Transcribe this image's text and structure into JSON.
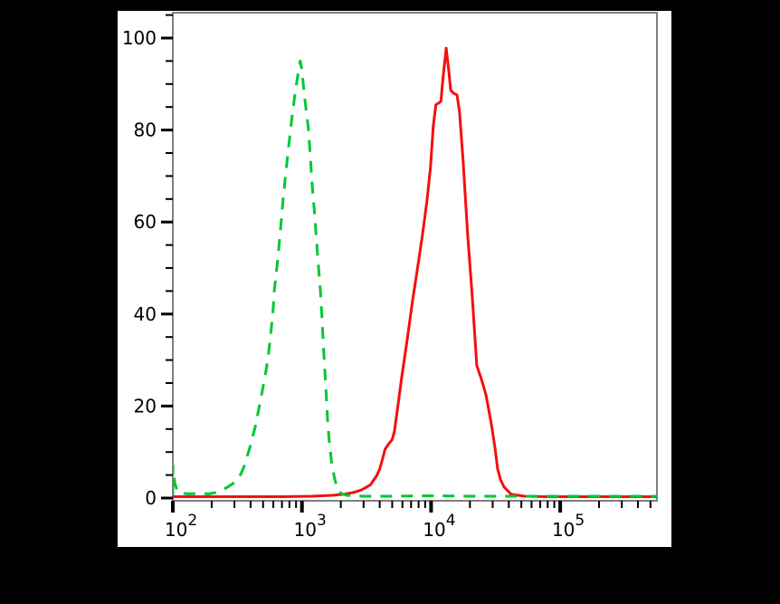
{
  "page": {
    "background_color": "#000000"
  },
  "panel": {
    "background_color": "#ffffff"
  },
  "chart_data": {
    "type": "line",
    "subtype": "flow-cytometry-overlay-histogram",
    "title": "",
    "xlabel": "",
    "ylabel": "",
    "x_scale": "log",
    "x_range": [
      100,
      561000
    ],
    "y_range": [
      0,
      100
    ],
    "grid": false,
    "legend": null,
    "frame_color": "#7f7f7f",
    "tick_color": "#000000",
    "label_color": "#000000",
    "y_major_ticks": [
      {
        "label": "0",
        "value": 0
      },
      {
        "label": "20",
        "value": 20
      },
      {
        "label": "40",
        "value": 40
      },
      {
        "label": "60",
        "value": 60
      },
      {
        "label": "80",
        "value": 80
      },
      {
        "label": "100",
        "value": 100
      }
    ],
    "y_minor_step": 5,
    "y_minor_max": 105,
    "x_major_ticks": [
      {
        "base": "10",
        "exp": "2",
        "value": 100
      },
      {
        "base": "10",
        "exp": "3",
        "value": 1000
      },
      {
        "base": "10",
        "exp": "4",
        "value": 10000
      },
      {
        "base": "10",
        "exp": "5",
        "value": 100000
      }
    ],
    "x_minor_multiples": [
      2,
      3,
      4,
      5,
      6,
      7,
      8,
      9
    ],
    "series": [
      {
        "name": "red-solid-sample",
        "color": "#f50f0f",
        "line_style": "solid",
        "peak": {
          "x": 13100,
          "y": 97.8
        },
        "points": [
          [
            100,
            0.3
          ],
          [
            300,
            0.3
          ],
          [
            700,
            0.3
          ],
          [
            1200,
            0.4
          ],
          [
            1700,
            0.6
          ],
          [
            2100,
            0.8
          ],
          [
            2500,
            1.2
          ],
          [
            2900,
            1.8
          ],
          [
            3400,
            2.9
          ],
          [
            3800,
            4.9
          ],
          [
            4000,
            6.3
          ],
          [
            4200,
            8.4
          ],
          [
            4400,
            10.6
          ],
          [
            4700,
            11.8
          ],
          [
            5000,
            12.7
          ],
          [
            5200,
            14.5
          ],
          [
            5500,
            19.4
          ],
          [
            5900,
            25.9
          ],
          [
            6500,
            34.0
          ],
          [
            7200,
            43.0
          ],
          [
            7800,
            49.4
          ],
          [
            8600,
            57.5
          ],
          [
            9300,
            64.7
          ],
          [
            9900,
            72.0
          ],
          [
            10400,
            80.8
          ],
          [
            10900,
            85.5
          ],
          [
            11900,
            86.2
          ],
          [
            12400,
            91.5
          ],
          [
            13100,
            97.8
          ],
          [
            13700,
            93.0
          ],
          [
            14200,
            88.6
          ],
          [
            15000,
            88.0
          ],
          [
            15900,
            87.6
          ],
          [
            16600,
            84.0
          ],
          [
            17700,
            73.3
          ],
          [
            19200,
            57.3
          ],
          [
            20800,
            44.1
          ],
          [
            22600,
            28.8
          ],
          [
            24500,
            25.9
          ],
          [
            26600,
            22.5
          ],
          [
            29300,
            16.1
          ],
          [
            31300,
            10.8
          ],
          [
            32800,
            6.3
          ],
          [
            34400,
            4.1
          ],
          [
            36700,
            2.4
          ],
          [
            41800,
            0.8
          ],
          [
            53200,
            0.4
          ],
          [
            80000,
            0.3
          ],
          [
            150000,
            0.3
          ],
          [
            300000,
            0.3
          ],
          [
            561000,
            0.3
          ]
        ]
      },
      {
        "name": "green-dashed-control",
        "color": "#00c832",
        "line_style": "dashed",
        "peak": {
          "x": 970,
          "y": 95
        },
        "points": [
          [
            100,
            0.6
          ],
          [
            100,
            7.0
          ],
          [
            104,
            3.0
          ],
          [
            110,
            1.2
          ],
          [
            130,
            0.9
          ],
          [
            160,
            1.0
          ],
          [
            190,
            0.9
          ],
          [
            215,
            1.2
          ],
          [
            227,
            1.4
          ],
          [
            259,
            2.2
          ],
          [
            295,
            3.2
          ],
          [
            319,
            4.0
          ],
          [
            340,
            5.5
          ],
          [
            358,
            7.0
          ],
          [
            375,
            8.9
          ],
          [
            394,
            10.9
          ],
          [
            414,
            13.2
          ],
          [
            434,
            15.4
          ],
          [
            456,
            18.4
          ],
          [
            478,
            21.3
          ],
          [
            502,
            24.5
          ],
          [
            527,
            27.7
          ],
          [
            550,
            31.0
          ],
          [
            595,
            40.0
          ],
          [
            610,
            45.0
          ],
          [
            650,
            52.0
          ],
          [
            680,
            58.0
          ],
          [
            715,
            65.0
          ],
          [
            765,
            73.0
          ],
          [
            830,
            82.0
          ],
          [
            885,
            88.0
          ],
          [
            930,
            92.0
          ],
          [
            970,
            95.0
          ],
          [
            1000,
            93.0
          ],
          [
            1040,
            88.0
          ],
          [
            1125,
            80.0
          ],
          [
            1200,
            68.0
          ],
          [
            1260,
            61.0
          ],
          [
            1320,
            53.0
          ],
          [
            1390,
            45.0
          ],
          [
            1430,
            39.0
          ],
          [
            1480,
            31.0
          ],
          [
            1530,
            24.0
          ],
          [
            1580,
            17.0
          ],
          [
            1630,
            12.0
          ],
          [
            1710,
            7.0
          ],
          [
            1800,
            4.0
          ],
          [
            1880,
            2.0
          ],
          [
            2010,
            1.0
          ],
          [
            2210,
            0.6
          ],
          [
            2500,
            0.5
          ],
          [
            3000,
            0.4
          ],
          [
            5000,
            0.4
          ],
          [
            10000,
            0.5
          ],
          [
            20000,
            0.4
          ],
          [
            50000,
            0.4
          ],
          [
            100000,
            0.4
          ],
          [
            200000,
            0.4
          ],
          [
            400000,
            0.4
          ],
          [
            561000,
            0.4
          ]
        ]
      }
    ]
  }
}
